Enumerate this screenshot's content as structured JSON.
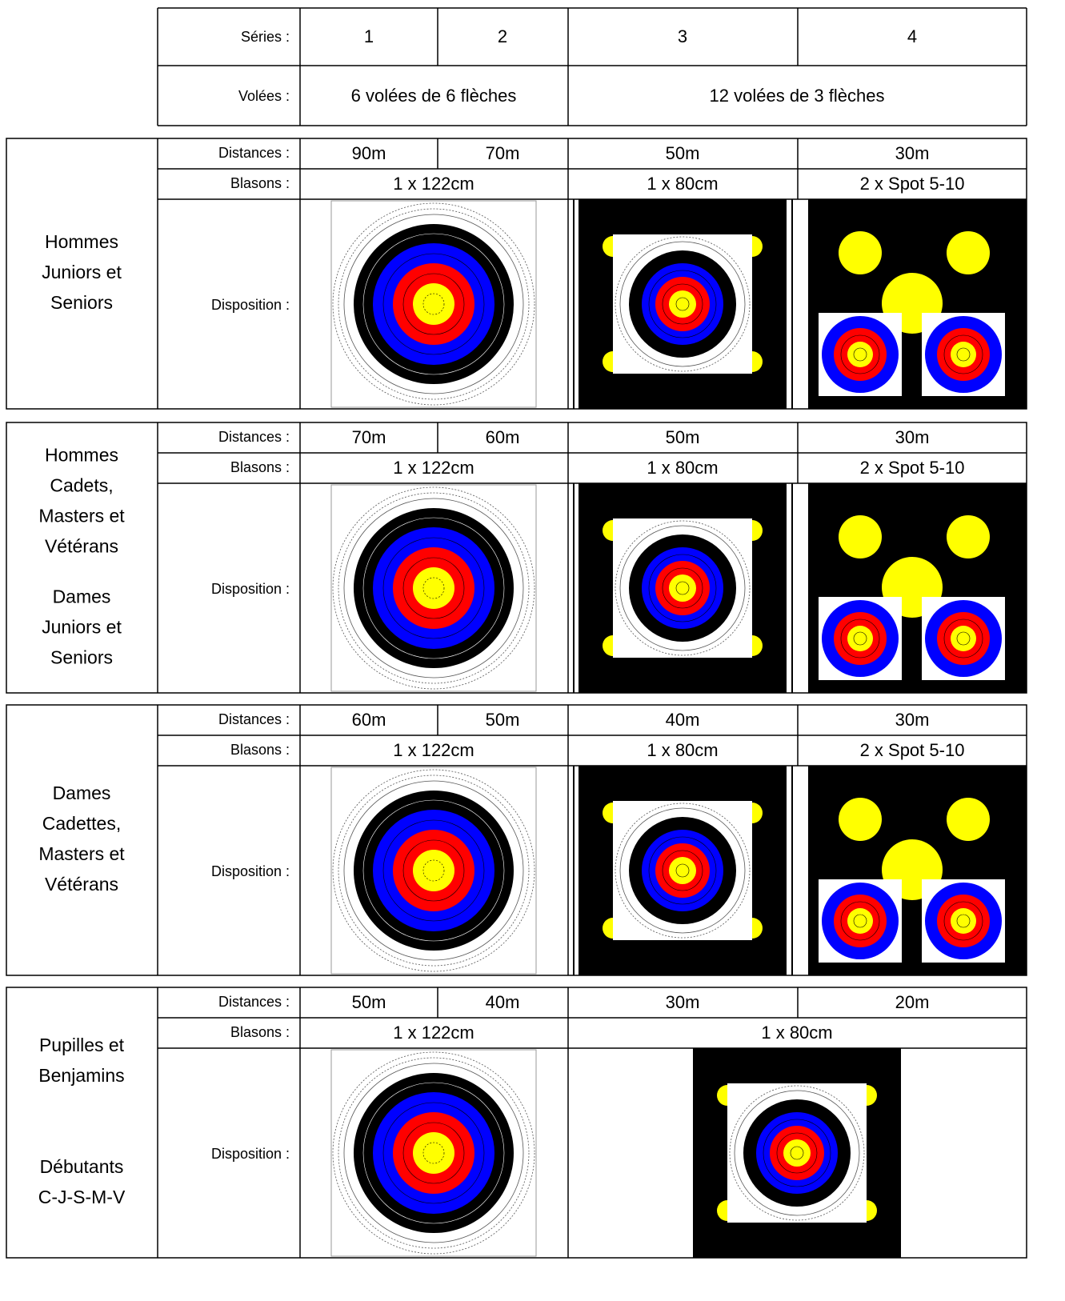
{
  "header": {
    "series_label": "Séries :",
    "series": [
      "1",
      "2",
      "3",
      "4"
    ],
    "volees_label": "Volées :",
    "volees": [
      "6 volées de 6 flèches",
      "12 volées de 3 flèches"
    ]
  },
  "blocks": [
    {
      "category_groups": [
        [
          "Hommes",
          "Juniors et",
          "Seniors"
        ]
      ],
      "distances_label": "Distances :",
      "distances": [
        "90m",
        "70m",
        "50m",
        "30m"
      ],
      "blasons_label": "Blasons :",
      "blasons": [
        "1 x 122cm",
        "1 x 80cm",
        "2 x Spot 5-10"
      ],
      "disposition_label": "Disposition :"
    },
    {
      "category_groups": [
        [
          "Hommes",
          "Cadets,",
          "Masters et",
          "Vétérans"
        ],
        [
          "Dames",
          "Juniors et",
          "Seniors"
        ]
      ],
      "distances_label": "Distances :",
      "distances": [
        "70m",
        "60m",
        "50m",
        "30m"
      ],
      "blasons_label": "Blasons :",
      "blasons": [
        "1 x 122cm",
        "1 x 80cm",
        "2 x Spot 5-10"
      ],
      "disposition_label": "Disposition :"
    },
    {
      "category_groups": [
        [
          "Dames",
          "Cadettes,",
          "Masters et",
          "Vétérans"
        ]
      ],
      "distances_label": "Distances :",
      "distances": [
        "60m",
        "50m",
        "40m",
        "30m"
      ],
      "blasons_label": "Blasons :",
      "blasons": [
        "1 x 122cm",
        "1 x 80cm",
        "2 x Spot 5-10"
      ],
      "disposition_label": "Disposition :"
    },
    {
      "category_groups": [
        [
          "Pupilles et",
          "Benjamins"
        ],
        [
          "Débutants",
          "C-J-S-M-V"
        ]
      ],
      "distances_label": "Distances :",
      "distances": [
        "50m",
        "40m",
        "30m",
        "20m"
      ],
      "blasons_label": "Blasons :",
      "blasons": [
        "1 x 122cm",
        "1 x 80cm"
      ],
      "disposition_label": "Disposition :"
    }
  ]
}
